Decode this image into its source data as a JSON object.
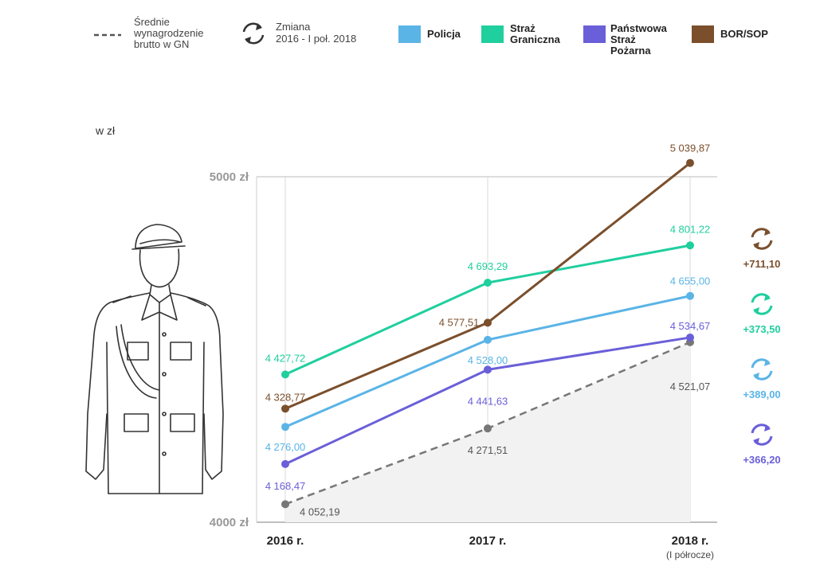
{
  "chart_data": {
    "type": "line",
    "unit_label": "w zł",
    "categories": [
      "2016 r.",
      "2017 r.",
      "2018 r."
    ],
    "category_notes": [
      "",
      "",
      "(I półrocze)"
    ],
    "ylim": [
      4000,
      5000
    ],
    "yticks": [
      {
        "value": 4000,
        "label": "4000 zł"
      },
      {
        "value": 5000,
        "label": "5000 zł"
      }
    ],
    "series": [
      {
        "key": "sg",
        "name": "Straż Graniczna",
        "color": "#1fcf9e",
        "values": [
          4427.72,
          4693.29,
          4801.22
        ],
        "labels": [
          "4 427,72",
          "4 693,29",
          "4 801,22"
        ],
        "change": "+373,50"
      },
      {
        "key": "bor",
        "name": "BOR/SOP",
        "color": "#7b4f2c",
        "values": [
          4328.77,
          4577.51,
          5039.87
        ],
        "labels": [
          "4 328,77",
          "4 577,51",
          "5 039,87"
        ],
        "change": "+711,10"
      },
      {
        "key": "pol",
        "name": "Policja",
        "color": "#5ab4e6",
        "values": [
          4276.0,
          4528.0,
          4655.0
        ],
        "labels": [
          "4 276,00",
          "4 528,00",
          "4 655,00"
        ],
        "change": "+389,00"
      },
      {
        "key": "psp",
        "name": "Państwowa Straż Pożarna",
        "color": "#6a5fd8",
        "values": [
          4168.47,
          4441.63,
          4534.67
        ],
        "labels": [
          "4 168,47",
          "4 441,63",
          "4 534,67"
        ],
        "change": "+366,20"
      },
      {
        "key": "gn",
        "name": "Średnie wynagrodzenie brutto w GN",
        "color": "#777777",
        "values": [
          4052.19,
          4271.51,
          4521.07
        ],
        "labels": [
          "4 052,19",
          "4 271,51",
          "4 521,07"
        ],
        "dashed": true
      }
    ],
    "legend": {
      "avg_lines": [
        "Średnie",
        "wynagrodzenie",
        "brutto w GN"
      ],
      "change_lines": [
        "Zmiana",
        "2016 - I poł. 2018"
      ],
      "items": [
        {
          "lines": [
            "Policja"
          ],
          "color": "#5ab4e6"
        },
        {
          "lines": [
            "Straż",
            "Graniczna"
          ],
          "color": "#1fcf9e"
        },
        {
          "lines": [
            "Państwowa",
            "Straż",
            "Pożarna"
          ],
          "color": "#6a5fd8"
        },
        {
          "lines": [
            "BOR/SOP"
          ],
          "color": "#7b4f2c"
        }
      ]
    },
    "change_icon": "refresh-cycle-icon",
    "decoration_icon": "police-officer-icon"
  }
}
